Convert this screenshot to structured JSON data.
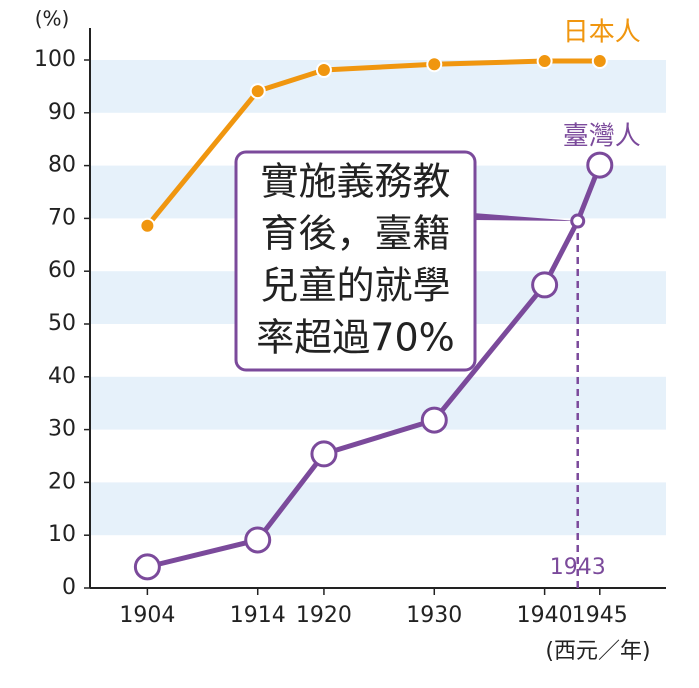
{
  "chart_data": {
    "type": "line",
    "y_label": "(%)",
    "x_label": "(西元／年)",
    "xlim": [
      1898.8,
      1951
    ],
    "ylim": [
      0,
      100
    ],
    "xticks": [
      1904,
      1914,
      1920,
      1930,
      1940,
      1945
    ],
    "yticks": [
      0,
      10,
      20,
      30,
      40,
      50,
      60,
      70,
      80,
      90,
      100
    ],
    "grid": true,
    "highlight_x": 1943,
    "series": [
      {
        "name": "日本人",
        "color": "#f0960f",
        "x": [
          1904,
          1914,
          1920,
          1930,
          1940,
          1945
        ],
        "values": [
          68.6,
          94.1,
          98.1,
          99.2,
          99.8,
          99.8
        ]
      },
      {
        "name": "臺灣人",
        "color": "#7b4a9b",
        "x": [
          1904,
          1914,
          1920,
          1930,
          1940,
          1943,
          1945
        ],
        "values": [
          4,
          9.1,
          25.4,
          31.8,
          57.4,
          69.5,
          80.1
        ]
      }
    ],
    "annotation": {
      "lines": [
        "實施義務教",
        "育後，臺籍",
        "兒童的就學",
        "率超過70%"
      ]
    }
  }
}
